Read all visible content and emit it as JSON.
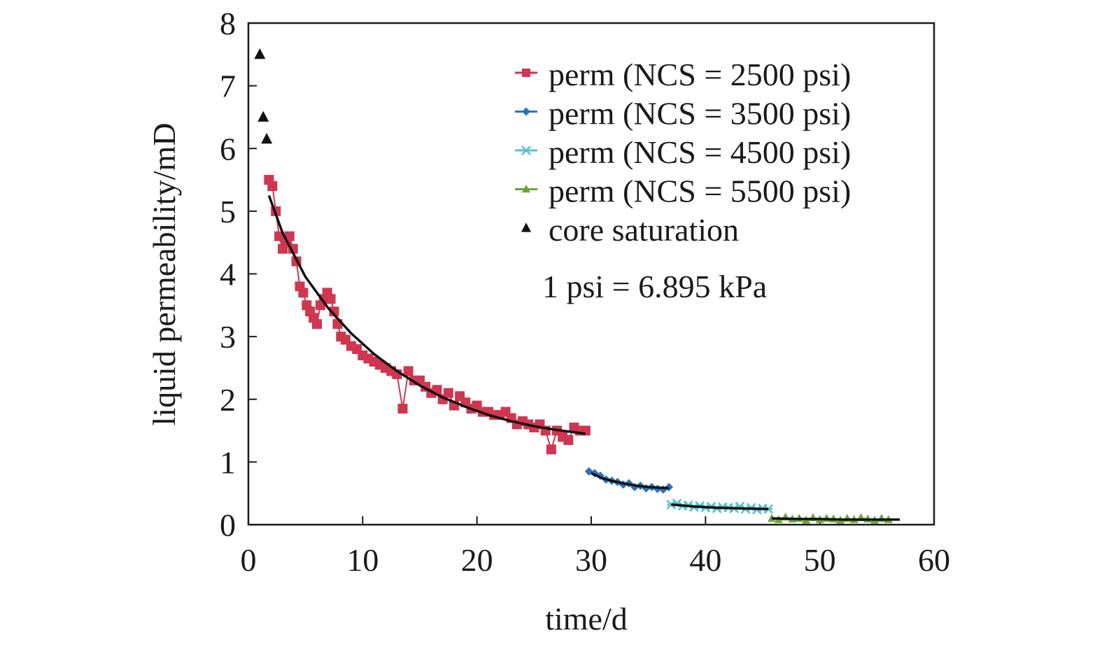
{
  "chart_data": {
    "type": "scatter",
    "title": "",
    "xlabel": "time/d",
    "ylabel": "liquid permeability/mD",
    "xlim": [
      0,
      60
    ],
    "ylim": [
      0,
      8
    ],
    "xticks": [
      0,
      10,
      20,
      30,
      40,
      50,
      60
    ],
    "yticks": [
      0,
      1,
      2,
      3,
      4,
      5,
      6,
      7,
      8
    ],
    "grid": false,
    "legend_position": "top-right",
    "annotation": "1 psi = 6.895 kPa",
    "series": [
      {
        "name": "perm (NCS = 2500 psi)",
        "color": "#d0364f",
        "marker": "square",
        "x": [
          1.8,
          2.1,
          2.4,
          2.7,
          3.0,
          3.3,
          3.6,
          3.9,
          4.2,
          4.5,
          4.8,
          5.1,
          5.4,
          5.7,
          6.0,
          6.3,
          6.6,
          6.9,
          7.2,
          7.5,
          7.8,
          8.1,
          8.5,
          9.0,
          9.5,
          10.0,
          10.5,
          11.0,
          11.5,
          12.0,
          12.5,
          13.0,
          13.5,
          14.0,
          14.5,
          15.0,
          15.5,
          16.0,
          16.5,
          17.0,
          17.5,
          18.0,
          18.5,
          19.0,
          19.5,
          20.0,
          20.5,
          21.0,
          21.5,
          22.0,
          22.5,
          23.0,
          23.5,
          24.0,
          24.5,
          25.0,
          25.5,
          26.0,
          26.5,
          27.0,
          27.5,
          28.0,
          28.5,
          29.0,
          29.5
        ],
        "y": [
          5.5,
          5.4,
          5.0,
          4.6,
          4.4,
          4.5,
          4.6,
          4.4,
          4.2,
          3.8,
          3.7,
          3.5,
          3.4,
          3.3,
          3.2,
          3.5,
          3.6,
          3.7,
          3.6,
          3.4,
          3.2,
          3.0,
          2.95,
          2.85,
          2.8,
          2.7,
          2.65,
          2.6,
          2.55,
          2.5,
          2.45,
          2.4,
          1.85,
          2.45,
          2.3,
          2.3,
          2.2,
          2.1,
          2.15,
          2.0,
          2.1,
          1.9,
          2.05,
          1.95,
          1.85,
          1.9,
          1.8,
          1.8,
          1.75,
          1.75,
          1.8,
          1.7,
          1.6,
          1.65,
          1.6,
          1.55,
          1.6,
          1.5,
          1.2,
          1.5,
          1.4,
          1.35,
          1.55,
          1.5,
          1.5
        ]
      },
      {
        "name": "perm (NCS = 3500 psi)",
        "color": "#2e72b8",
        "marker": "diamond",
        "x": [
          29.8,
          30.3,
          30.8,
          31.3,
          31.8,
          32.3,
          32.8,
          33.3,
          33.8,
          34.3,
          34.8,
          35.3,
          35.8,
          36.3,
          36.8
        ],
        "y": [
          0.85,
          0.82,
          0.78,
          0.72,
          0.7,
          0.68,
          0.64,
          0.66,
          0.6,
          0.62,
          0.58,
          0.6,
          0.57,
          0.56,
          0.6
        ]
      },
      {
        "name": "perm (NCS = 4500 psi)",
        "color": "#55c2d0",
        "marker": "cross",
        "x": [
          37.0,
          37.5,
          38.0,
          38.5,
          39.0,
          39.5,
          40.0,
          40.5,
          41.0,
          41.5,
          42.0,
          42.5,
          43.0,
          43.5,
          44.0,
          44.5,
          45.0,
          45.5
        ],
        "y": [
          0.32,
          0.34,
          0.3,
          0.31,
          0.28,
          0.3,
          0.27,
          0.29,
          0.26,
          0.28,
          0.27,
          0.26,
          0.29,
          0.25,
          0.27,
          0.24,
          0.26,
          0.25
        ]
      },
      {
        "name": "perm (NCS = 5500 psi)",
        "color": "#6aa33b",
        "marker": "triangle",
        "x": [
          45.8,
          46.4,
          47.0,
          47.6,
          48.2,
          48.8,
          49.4,
          50.0,
          50.6,
          51.2,
          51.8,
          52.4,
          53.0,
          53.6,
          54.2,
          54.8,
          55.4,
          56.0
        ],
        "y": [
          0.1,
          0.08,
          0.12,
          0.09,
          0.1,
          0.07,
          0.11,
          0.08,
          0.1,
          0.09,
          0.07,
          0.1,
          0.08,
          0.11,
          0.09,
          0.07,
          0.1,
          0.08
        ]
      },
      {
        "name": "core saturation",
        "color": "#111111",
        "marker": "triangle",
        "x": [
          1.0,
          1.3,
          1.6
        ],
        "y": [
          7.5,
          6.5,
          6.15
        ]
      }
    ],
    "fit_curves": [
      {
        "color": "#111111",
        "x": [
          1.8,
          3,
          5,
          7,
          9,
          11,
          13,
          15,
          17,
          19,
          21,
          23,
          25,
          27,
          29.5
        ],
        "y": [
          5.25,
          4.65,
          3.95,
          3.45,
          3.05,
          2.72,
          2.45,
          2.22,
          2.03,
          1.88,
          1.75,
          1.65,
          1.57,
          1.51,
          1.45
        ]
      },
      {
        "color": "#111111",
        "x": [
          30.0,
          31.0,
          32.0,
          33.0,
          34.0,
          35.0,
          36.0,
          36.8
        ],
        "y": [
          0.82,
          0.74,
          0.69,
          0.65,
          0.62,
          0.6,
          0.59,
          0.58
        ]
      },
      {
        "color": "#111111",
        "x": [
          37.0,
          39.0,
          41.0,
          43.0,
          45.5
        ],
        "y": [
          0.32,
          0.29,
          0.27,
          0.26,
          0.25
        ]
      },
      {
        "color": "#111111",
        "x": [
          45.8,
          48.0,
          50.0,
          52.0,
          54.0,
          57.0
        ],
        "y": [
          0.1,
          0.09,
          0.09,
          0.08,
          0.08,
          0.08
        ]
      }
    ]
  }
}
